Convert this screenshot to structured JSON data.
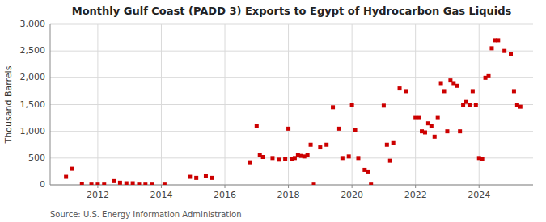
{
  "chart_data": {
    "type": "scatter",
    "title": "Monthly Gulf Coast (PADD 3) Exports to Egypt of Hydrocarbon Gas Liquids",
    "y_label": "Thousand Barrels",
    "source": "Source: U.S. Energy Information Administration",
    "color": "#cc0000",
    "marker": "square",
    "grid": true,
    "xlim": [
      2010.5,
      2025.7
    ],
    "xticks": [
      2012,
      2014,
      2016,
      2018,
      2020,
      2022,
      2024
    ],
    "ylim": [
      0,
      3000
    ],
    "yticks": [
      0,
      500,
      {
        "value": 1000,
        "label": "1,000"
      },
      {
        "value": 1500,
        "label": "1,500"
      },
      {
        "value": 2000,
        "label": "2,000"
      },
      {
        "value": 2500,
        "label": "2,500"
      },
      {
        "value": 3000,
        "label": "3,000"
      }
    ],
    "x": [
      2011.0,
      2011.2,
      2011.5,
      2011.8,
      2012.0,
      2012.2,
      2012.5,
      2012.7,
      2012.9,
      2013.1,
      2013.3,
      2013.5,
      2013.7,
      2014.1,
      2014.9,
      2015.1,
      2015.4,
      2015.6,
      2016.8,
      2017.0,
      2017.1,
      2017.2,
      2017.5,
      2017.7,
      2017.9,
      2018.0,
      2018.1,
      2018.2,
      2018.3,
      2018.4,
      2018.5,
      2018.6,
      2018.7,
      2018.8,
      2019.0,
      2019.2,
      2019.4,
      2019.6,
      2019.7,
      2019.9,
      2020.0,
      2020.1,
      2020.2,
      2020.4,
      2020.5,
      2020.6,
      2021.0,
      2021.1,
      2021.2,
      2021.3,
      2021.5,
      2021.7,
      2022.0,
      2022.1,
      2022.2,
      2022.3,
      2022.4,
      2022.5,
      2022.6,
      2022.7,
      2022.8,
      2022.9,
      2023.0,
      2023.1,
      2023.2,
      2023.3,
      2023.4,
      2023.5,
      2023.6,
      2023.7,
      2023.8,
      2023.9,
      2024.0,
      2024.1,
      2024.2,
      2024.3,
      2024.4,
      2024.5,
      2024.6,
      2024.8,
      2025.0,
      2025.1,
      2025.2,
      2025.3
    ],
    "values": [
      150,
      300,
      20,
      5,
      5,
      5,
      70,
      40,
      30,
      30,
      5,
      5,
      5,
      5,
      150,
      130,
      170,
      130,
      420,
      1100,
      550,
      520,
      500,
      470,
      480,
      1050,
      490,
      500,
      550,
      540,
      530,
      560,
      750,
      5,
      700,
      750,
      1450,
      1050,
      500,
      530,
      1500,
      1020,
      500,
      280,
      250,
      5,
      1480,
      750,
      450,
      780,
      1800,
      1750,
      1250,
      1250,
      1000,
      980,
      1150,
      1100,
      900,
      1250,
      1900,
      1750,
      1000,
      1950,
      1900,
      1850,
      1000,
      1500,
      1550,
      1500,
      1750,
      1500,
      500,
      490,
      2000,
      2030,
      2550,
      2700,
      2700,
      2500,
      2450,
      1750,
      1500,
      1460
    ]
  }
}
